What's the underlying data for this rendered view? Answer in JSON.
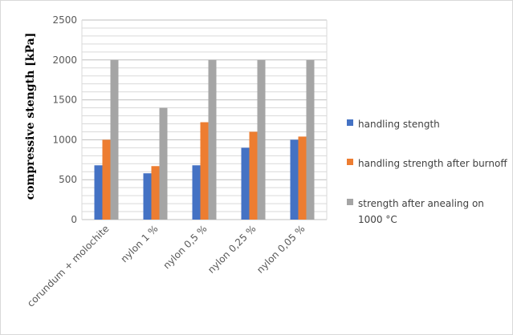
{
  "chart_data": {
    "type": "bar",
    "categories": [
      "corundum + molochite",
      "nylon 1 %",
      "nylon 0,5 %",
      "nylon 0,25 %",
      "nylon 0,05 %"
    ],
    "series": [
      {
        "name": "handling stength",
        "values": [
          680,
          580,
          680,
          900,
          1000
        ],
        "color": "#4472c4"
      },
      {
        "name": "handling strength after burnoff",
        "values": [
          1000,
          670,
          1220,
          1100,
          1040
        ],
        "color": "#ed7d31"
      },
      {
        "name": "strength after anealing on 1000 °C",
        "values": [
          2000,
          1400,
          2000,
          2000,
          2000
        ],
        "color": "#a5a5a5"
      }
    ],
    "ylabel": "compressive stength [kPa]",
    "ylim": [
      0,
      2500
    ],
    "yticks": [
      "0",
      "500",
      "1000",
      "1500",
      "2000",
      "2500"
    ],
    "grid": true,
    "legend": "right"
  }
}
